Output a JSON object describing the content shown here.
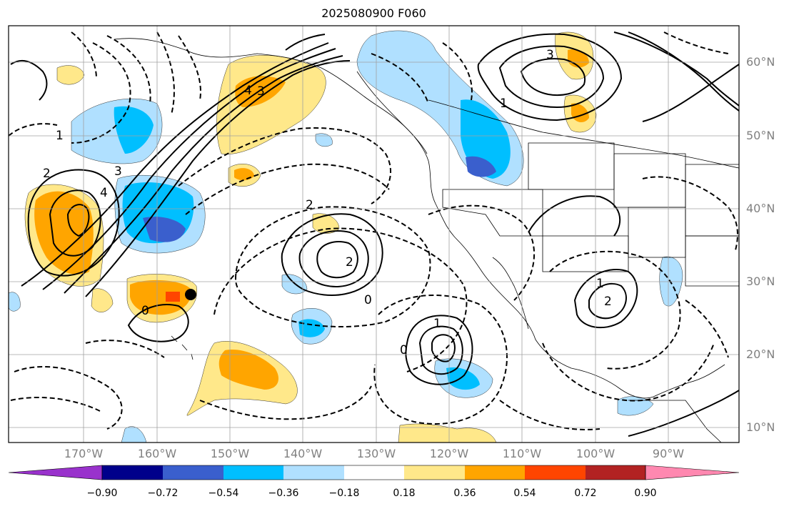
{
  "title": "2025080900 F060",
  "lat_labels": [
    "60°N",
    "50°N",
    "40°N",
    "30°N",
    "20°N",
    "10°N"
  ],
  "lon_labels": [
    "170°W",
    "160°W",
    "150°W",
    "140°W",
    "130°W",
    "120°W",
    "110°W",
    "100°W",
    "90°W"
  ],
  "colorbar": {
    "ticks": [
      "−0.90",
      "−0.72",
      "−0.54",
      "−0.36",
      "−0.18",
      "0.18",
      "0.36",
      "0.54",
      "0.72",
      "0.90"
    ],
    "colors": [
      "#9932cc",
      "#00008b",
      "#3a5fcd",
      "#00bfff",
      "#b0e0ff",
      "#ffffff",
      "#ffe88a",
      "#ffa500",
      "#ff4500",
      "#b22222",
      "#ff88b0"
    ]
  },
  "contour_labels": {
    "highs": [
      "4",
      "3",
      "3",
      "4",
      "2",
      "1",
      "3",
      "2",
      "1"
    ],
    "lows": [
      "0",
      "2",
      "1",
      "0",
      "1",
      "2",
      "0"
    ]
  },
  "colors": {
    "positive": "#ffa500",
    "negative": "#00bfff",
    "grid": "#a0a0a0",
    "land": "#000000"
  }
}
